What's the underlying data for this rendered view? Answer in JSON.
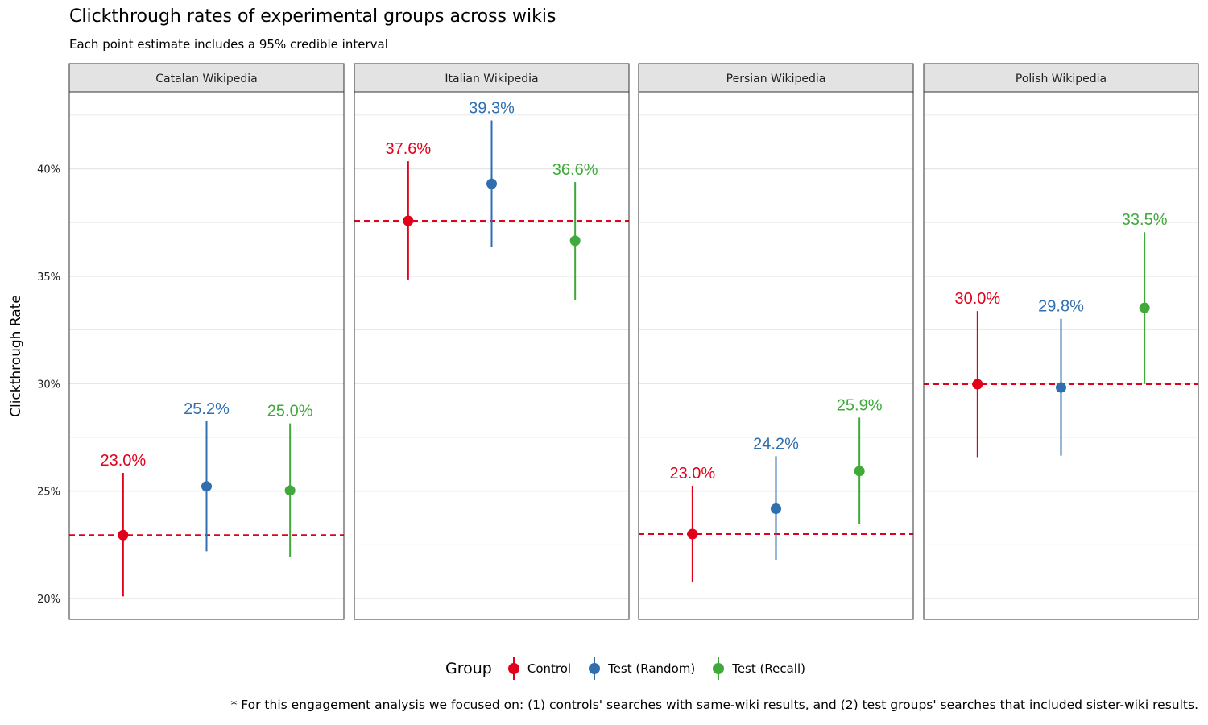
{
  "title": "Clickthrough rates of experimental groups across wikis",
  "subtitle": "Each point estimate includes a 95% credible interval",
  "caption": "* For this engagement analysis we focused on: (1) controls' searches with same-wiki results, and (2) test groups' searches that included sister-wiki results.",
  "colors": {
    "control": "#e3001b",
    "random": "#2f6fb0",
    "recall": "#3fa93a",
    "grid": "#e6e6e6",
    "panel_border": "#333333",
    "strip_fill": "#e3e3e3"
  },
  "chart_data": {
    "type": "scatter",
    "ylabel": "Clickthrough Rate",
    "ylim": [
      0.19,
      0.43
    ],
    "y_ticks": [
      0.2,
      0.25,
      0.3,
      0.35,
      0.4
    ],
    "y_tick_labels": [
      "20%",
      "25%",
      "30%",
      "35%",
      "40%"
    ],
    "grid": true,
    "legend": {
      "title": "Group",
      "position": "bottom",
      "entries": [
        "Control",
        "Test (Random)",
        "Test (Recall)"
      ]
    },
    "groups": [
      "Control",
      "Test (Random)",
      "Test (Recall)"
    ],
    "panels": [
      {
        "name": "Catalan Wikipedia",
        "baseline": 0.2295,
        "points": [
          {
            "group": "Control",
            "estimate": 0.2295,
            "lower": 0.201,
            "upper": 0.2585,
            "label": "23.0%"
          },
          {
            "group": "Test (Random)",
            "estimate": 0.2522,
            "lower": 0.222,
            "upper": 0.2825,
            "label": "25.2%"
          },
          {
            "group": "Test (Recall)",
            "estimate": 0.2503,
            "lower": 0.2195,
            "upper": 0.2815,
            "label": "25.0%"
          }
        ]
      },
      {
        "name": "Italian Wikipedia",
        "baseline": 0.3758,
        "points": [
          {
            "group": "Control",
            "estimate": 0.3758,
            "lower": 0.3485,
            "upper": 0.4035,
            "label": "37.6%"
          },
          {
            "group": "Test (Random)",
            "estimate": 0.393,
            "lower": 0.3637,
            "upper": 0.4225,
            "label": "39.3%"
          },
          {
            "group": "Test (Recall)",
            "estimate": 0.3665,
            "lower": 0.339,
            "upper": 0.3938,
            "label": "36.6%"
          }
        ]
      },
      {
        "name": "Persian Wikipedia",
        "baseline": 0.23,
        "points": [
          {
            "group": "Control",
            "estimate": 0.23,
            "lower": 0.2078,
            "upper": 0.2525,
            "label": "23.0%"
          },
          {
            "group": "Test (Random)",
            "estimate": 0.2418,
            "lower": 0.218,
            "upper": 0.2662,
            "label": "24.2%"
          },
          {
            "group": "Test (Recall)",
            "estimate": 0.2593,
            "lower": 0.2348,
            "upper": 0.2842,
            "label": "25.9%"
          }
        ]
      },
      {
        "name": "Polish Wikipedia",
        "baseline": 0.2997,
        "points": [
          {
            "group": "Control",
            "estimate": 0.2997,
            "lower": 0.2658,
            "upper": 0.3338,
            "label": "30.0%"
          },
          {
            "group": "Test (Random)",
            "estimate": 0.2982,
            "lower": 0.2665,
            "upper": 0.3302,
            "label": "29.8%"
          },
          {
            "group": "Test (Recall)",
            "estimate": 0.3353,
            "lower": 0.2998,
            "upper": 0.3705,
            "label": "33.5%"
          }
        ]
      }
    ]
  }
}
